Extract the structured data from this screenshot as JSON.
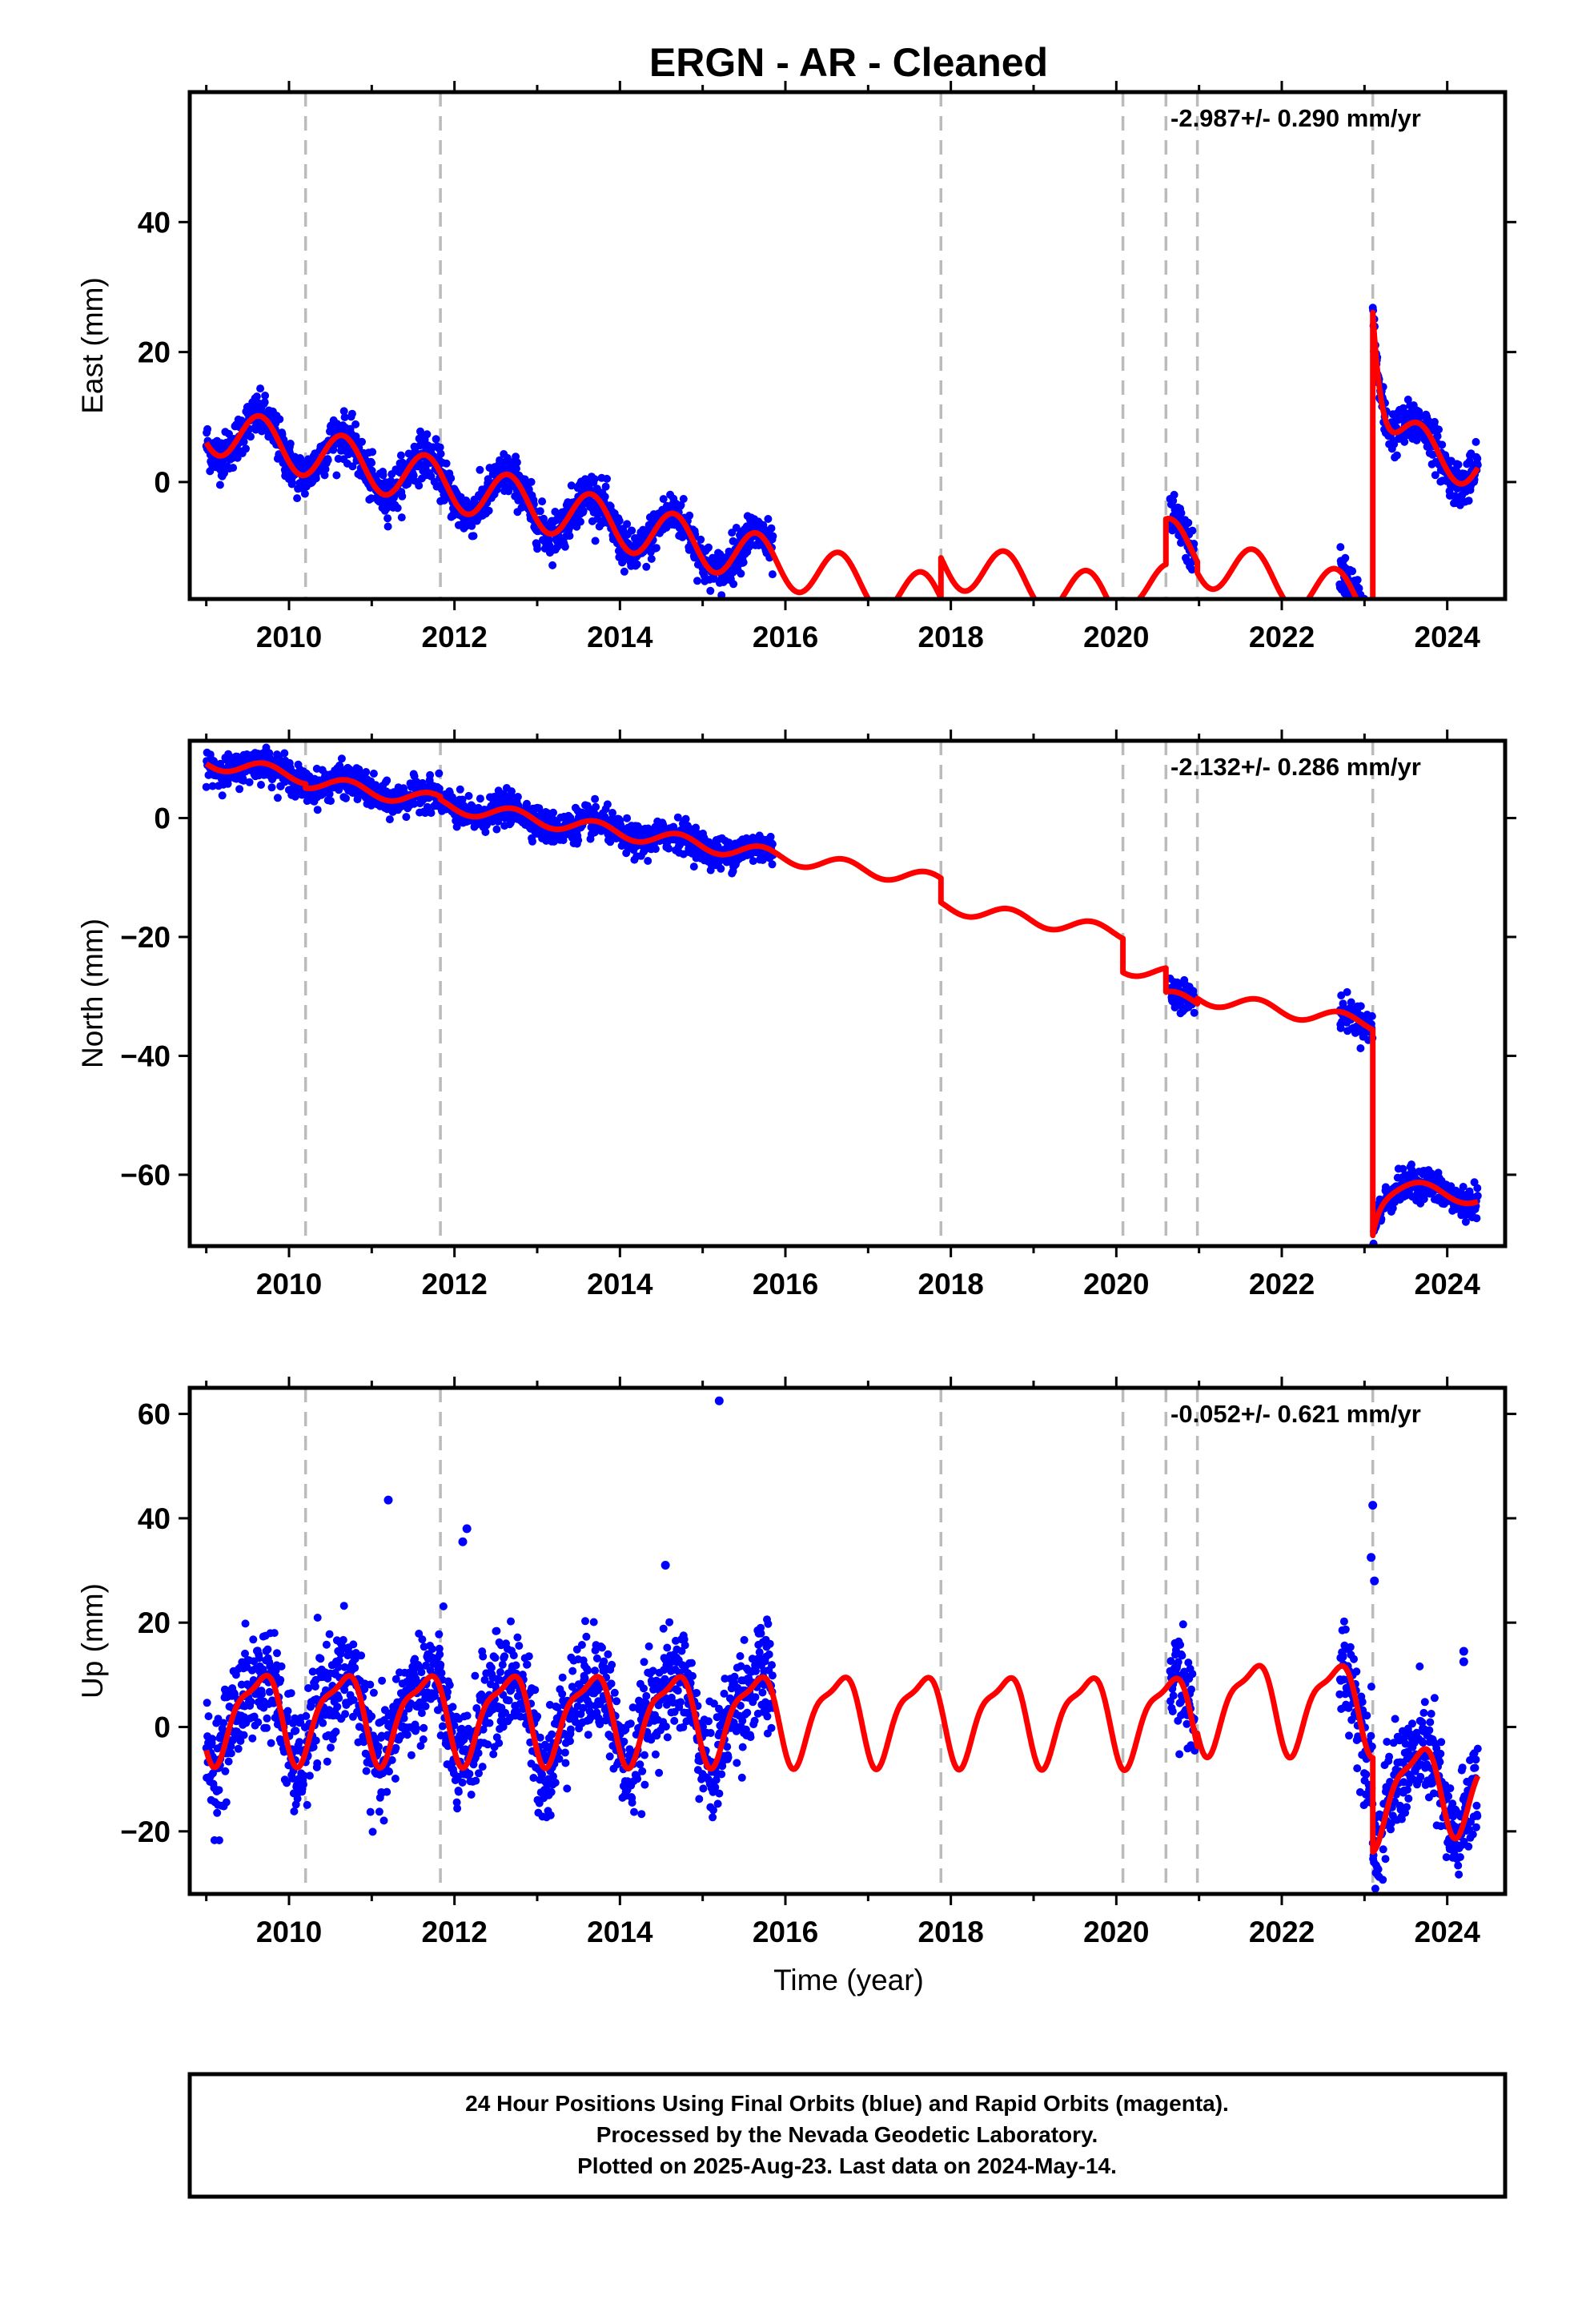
{
  "title": "ERGN  - AR - Cleaned",
  "xlabel": "Time (year)",
  "x_ticks": [
    "2010",
    "2012",
    "2014",
    "2016",
    "2018",
    "2020",
    "2022",
    "2024"
  ],
  "colors": {
    "final_orbits": "#0000ff",
    "rapid_orbits": "#ff00ff",
    "model": "#ff0000",
    "breaks": "#bbbbbb",
    "frame": "#000000"
  },
  "footer": {
    "line1": "24 Hour Positions Using Final Orbits (blue) and Rapid Orbits (magenta).",
    "line2": "Processed by the Nevada Geodetic Laboratory.",
    "line3": "Plotted on 2025-Aug-23. Last data on 2024-May-14."
  },
  "chart_data": [
    {
      "type": "scatter",
      "panel": "east",
      "ylabel": "East (mm)",
      "rate": "-2.987+/- 0.290 mm/yr",
      "xlim": [
        2008.8,
        2024.7
      ],
      "ylim": [
        -18,
        60
      ],
      "y_ticks": [
        {
          "v": 40,
          "l": "40"
        },
        {
          "v": 20,
          "l": "20"
        },
        {
          "v": 0,
          "l": "0"
        }
      ],
      "breaks": [
        2010.2,
        2011.83,
        2017.88,
        2020.08,
        2020.6,
        2020.98,
        2023.1
      ],
      "data_ranges": [
        [
          2009.0,
          2015.85
        ],
        [
          2020.65,
          2020.95
        ],
        [
          2022.7,
          2023.1
        ],
        [
          2023.1,
          2024.37
        ]
      ],
      "segments": [
        {
          "t0": 2009.0,
          "t1": 2017.88,
          "a": 8.3,
          "b": -3.0,
          "A": 3.8,
          "ph": 0.4
        },
        {
          "t0": 2017.88,
          "t1": 2020.08,
          "a": 14.5,
          "b": -3.0,
          "A": 3.8,
          "ph": 0.4
        },
        {
          "t0": 2020.08,
          "t1": 2020.6,
          "a": 18.5,
          "b": -3.0,
          "A": 3.8,
          "ph": 0.4
        },
        {
          "t0": 2020.6,
          "t1": 2020.98,
          "a": 25.5,
          "b": -3.0,
          "A": 3.8,
          "ph": 0.4
        },
        {
          "t0": 2020.98,
          "t1": 2023.1,
          "a": 23.8,
          "b": -3.0,
          "A": 3.8,
          "ph": 0.4
        },
        {
          "t0": 2023.1,
          "t1": 2024.37,
          "a": 49.0,
          "b": -3.0,
          "A": 3.8,
          "ph": 0.4,
          "post": {
            "amp": 23.0,
            "tau": 0.12,
            "start": 2023.1
          }
        }
      ],
      "scatter": 1.7
    },
    {
      "type": "scatter",
      "panel": "north",
      "ylabel": "North (mm)",
      "rate": "-2.132+/- 0.286 mm/yr",
      "xlim": [
        2008.8,
        2024.7
      ],
      "ylim": [
        -72,
        13
      ],
      "y_ticks": [
        {
          "v": 0,
          "l": "0"
        },
        {
          "v": -20,
          "l": "−20"
        },
        {
          "v": -40,
          "l": "−40"
        },
        {
          "v": -60,
          "l": "−60"
        }
      ],
      "breaks": [
        2010.2,
        2011.83,
        2017.88,
        2020.08,
        2020.6,
        2020.98,
        2023.1
      ],
      "data_ranges": [
        [
          2009.0,
          2015.85
        ],
        [
          2020.65,
          2020.95
        ],
        [
          2022.7,
          2023.1
        ],
        [
          2023.1,
          2024.37
        ]
      ],
      "segments": [
        {
          "t0": 2009.0,
          "t1": 2010.2,
          "a": 9.5,
          "b": -2.13,
          "A": 1.2,
          "ph": 0.45
        },
        {
          "t0": 2010.2,
          "t1": 2011.83,
          "a": 8.8,
          "b": -2.13,
          "A": 1.2,
          "ph": 0.45
        },
        {
          "t0": 2011.83,
          "t1": 2017.88,
          "a": 8.3,
          "b": -2.13,
          "A": 1.2,
          "ph": 0.45
        },
        {
          "t0": 2017.88,
          "t1": 2020.08,
          "a": 4.2,
          "b": -2.13,
          "A": 1.2,
          "ph": 0.45
        },
        {
          "t0": 2020.08,
          "t1": 2020.6,
          "a": -1.5,
          "b": -2.13,
          "A": 1.2,
          "ph": 0.45
        },
        {
          "t0": 2020.6,
          "t1": 2020.98,
          "a": -5.5,
          "b": -2.13,
          "A": 1.2,
          "ph": 0.45
        },
        {
          "t0": 2020.98,
          "t1": 2023.1,
          "a": -4.6,
          "b": -2.13,
          "A": 1.2,
          "ph": 0.45
        },
        {
          "t0": 2023.1,
          "t1": 2024.37,
          "a": -31.2,
          "b": -2.13,
          "A": 1.2,
          "ph": 0.45,
          "post": {
            "amp": -8.0,
            "tau": 0.1,
            "start": 2023.1
          }
        }
      ],
      "scatter": 1.3
    },
    {
      "type": "scatter",
      "panel": "up",
      "ylabel": "Up (mm)",
      "rate": "-0.052+/- 0.621 mm/yr",
      "xlim": [
        2008.8,
        2024.7
      ],
      "ylim": [
        -32,
        65
      ],
      "y_ticks": [
        {
          "v": 60,
          "l": "60"
        },
        {
          "v": 40,
          "l": "40"
        },
        {
          "v": 20,
          "l": "20"
        },
        {
          "v": 0,
          "l": "0"
        },
        {
          "v": -20,
          "l": "−20"
        }
      ],
      "breaks": [
        2010.2,
        2011.83,
        2017.88,
        2020.08,
        2020.6,
        2020.98,
        2023.1
      ],
      "data_ranges": [
        [
          2009.0,
          2015.85
        ],
        [
          2020.65,
          2020.95
        ],
        [
          2022.7,
          2023.1
        ],
        [
          2023.1,
          2024.37
        ]
      ],
      "segments": [
        {
          "t0": 2009.0,
          "t1": 2020.98,
          "a": 2.5,
          "b": -0.05,
          "A": 8.0,
          "ph": 0.38,
          "A2": 2.5,
          "ph2": 0.2
        },
        {
          "t0": 2020.98,
          "t1": 2023.1,
          "a": 5.0,
          "b": -0.05,
          "A": 8.0,
          "ph": 0.38,
          "A2": 2.5,
          "ph2": 0.2
        },
        {
          "t0": 2023.1,
          "t1": 2024.37,
          "a": -10.0,
          "b": -0.05,
          "A": 8.0,
          "ph": 0.38,
          "A2": 2.5,
          "ph2": 0.2,
          "post": {
            "amp": -3.0,
            "tau": 0.5,
            "start": 2023.1
          }
        }
      ],
      "scatter": 5.0,
      "outliers": [
        [
          2015.2,
          62.5
        ],
        [
          2011.2,
          43.5
        ],
        [
          2012.15,
          38
        ],
        [
          2012.1,
          35.5
        ],
        [
          2014.55,
          31
        ],
        [
          2023.1,
          42.5
        ],
        [
          2023.08,
          32.5
        ],
        [
          2023.12,
          28
        ],
        [
          2024.2,
          14.5
        ],
        [
          2024.2,
          12.5
        ]
      ]
    }
  ]
}
